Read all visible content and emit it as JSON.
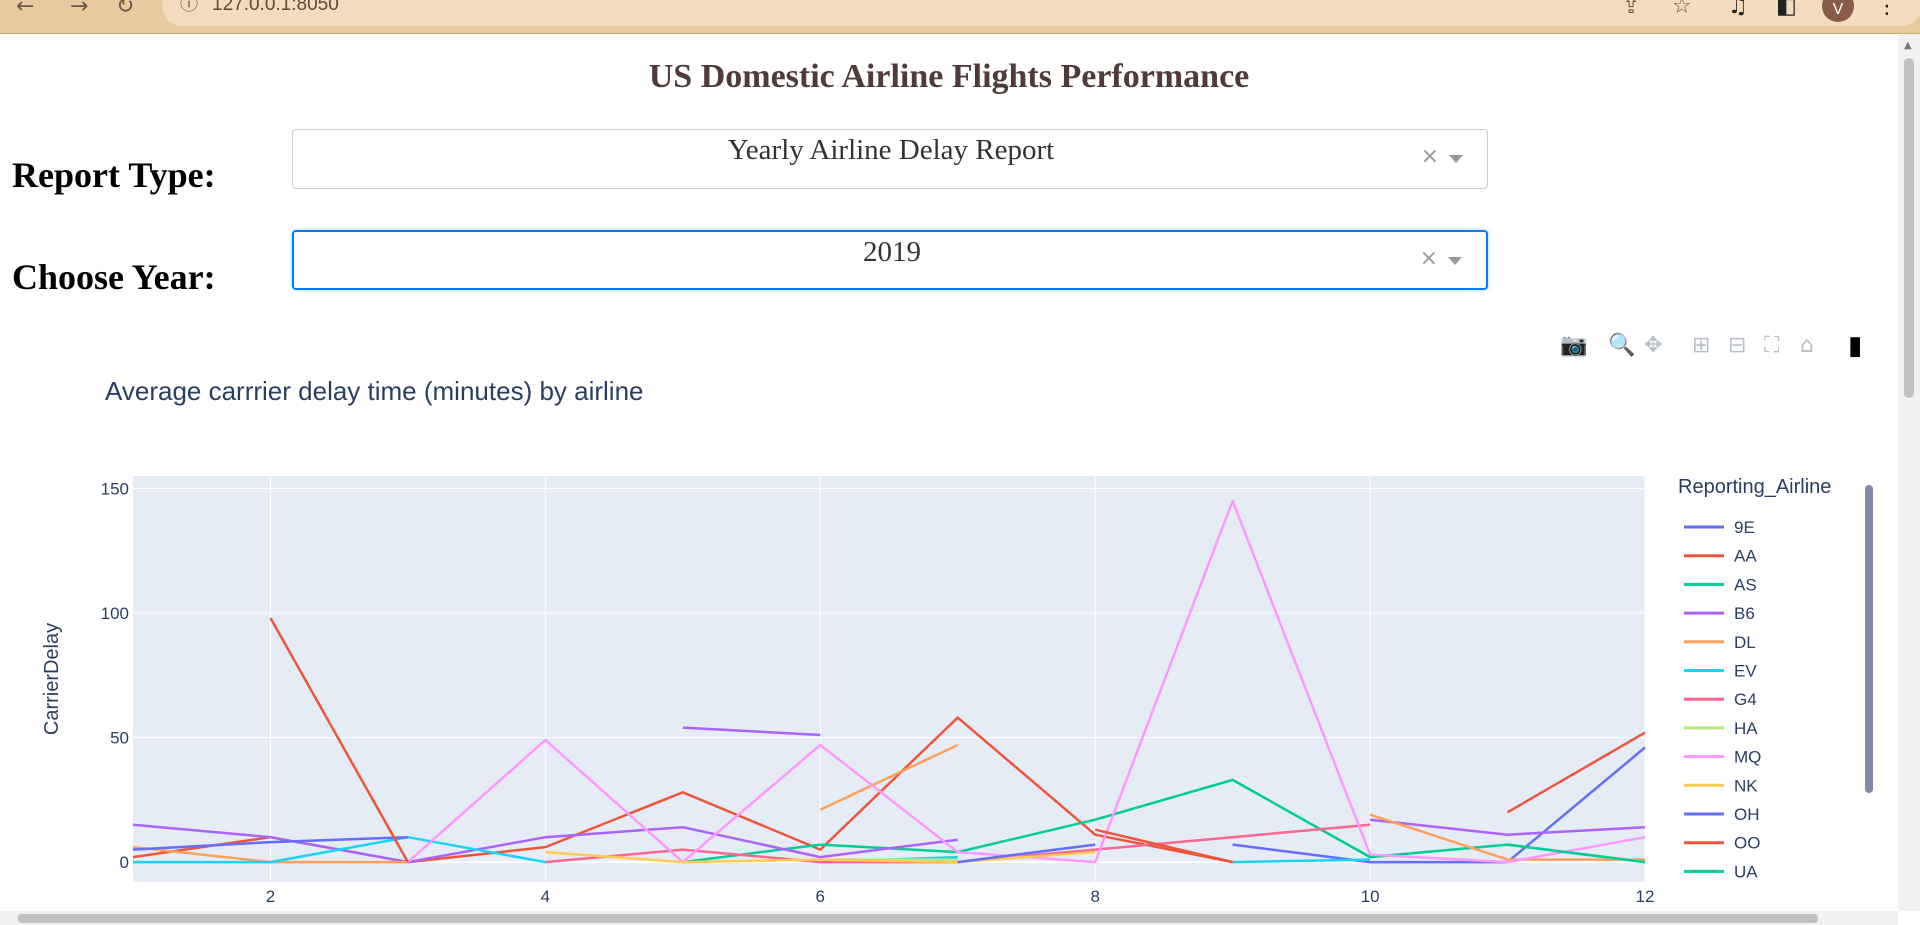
{
  "browser": {
    "url": "127.0.0.1:8050",
    "avatar_letter": "V",
    "nav_back": "←",
    "nav_forward": "→",
    "nav_reload": "↻",
    "info_icon": "ⓘ",
    "share_icon": "⇪",
    "star_icon": "☆",
    "media_icon": "♫",
    "sidepanel_icon": "◧",
    "menu_icon": "⋮"
  },
  "page": {
    "title": "US Domestic Airline Flights Performance",
    "report_label": "Report Type:",
    "report_value": "Yearly Airline Delay Report",
    "year_label": "Choose Year:",
    "year_value": "2019",
    "clear_symbol": "×"
  },
  "modebar": {
    "camera": "📷",
    "zoom": "🔍",
    "pan": "✥",
    "zoom_in": "⊞",
    "zoom_out": "⊟",
    "autoscale": "⛶",
    "reset": "⌂",
    "plotly_logo": "▮"
  },
  "chart_data": {
    "type": "line",
    "title": "Average carrrier delay time (minutes) by airline",
    "xlabel": "",
    "ylabel": "CarrierDelay",
    "xlim": [
      1,
      12
    ],
    "ylim": [
      -8,
      155
    ],
    "x_ticks": [
      2,
      4,
      6,
      8,
      10,
      12
    ],
    "y_ticks": [
      0,
      50,
      100,
      150
    ],
    "grid": true,
    "legend_title": "Reporting_Airline",
    "legend_position": "right",
    "colors": {
      "plot_bg": "#E5ECF6",
      "grid": "#ffffff",
      "text": "#2a3f5f"
    },
    "series": [
      {
        "name": "9E",
        "color": "#636EFA",
        "points": [
          [
            9,
            7
          ],
          [
            10,
            0
          ],
          [
            11,
            0
          ],
          [
            12,
            46
          ]
        ]
      },
      {
        "name": "AA",
        "color": "#EF553B",
        "points": [
          [
            1,
            2
          ],
          [
            2,
            10
          ],
          [
            3,
            0
          ],
          [
            4,
            6
          ],
          [
            5,
            28
          ],
          [
            6,
            5
          ],
          [
            7,
            58
          ],
          [
            8,
            11
          ],
          [
            9,
            0
          ]
        ]
      },
      {
        "name": "AS",
        "color": "#00CC96",
        "points": [
          [
            5,
            0
          ],
          [
            6,
            7
          ],
          [
            7,
            4
          ],
          [
            8,
            17
          ],
          [
            9,
            33
          ],
          [
            10,
            2
          ],
          [
            11,
            7
          ],
          [
            12,
            0
          ]
        ]
      },
      {
        "name": "B6",
        "color": "#AB63FA",
        "points": [
          [
            1,
            15
          ],
          [
            2,
            10
          ],
          [
            3,
            0
          ],
          [
            4,
            10
          ],
          [
            5,
            14
          ],
          [
            6,
            2
          ],
          [
            7,
            9
          ]
        ]
      },
      {
        "name": "B6",
        "color": "#AB63FA",
        "points": [
          [
            5,
            54
          ],
          [
            6,
            51
          ]
        ]
      },
      {
        "name": "B6",
        "color": "#AB63FA",
        "points": [
          [
            10,
            17
          ],
          [
            11,
            11
          ],
          [
            12,
            14
          ]
        ]
      },
      {
        "name": "DL",
        "color": "#FFA15A",
        "points": [
          [
            1,
            6
          ],
          [
            2,
            0
          ],
          [
            3,
            0
          ]
        ]
      },
      {
        "name": "DL",
        "color": "#FFA15A",
        "points": [
          [
            6,
            21
          ],
          [
            7,
            47
          ]
        ]
      },
      {
        "name": "DL",
        "color": "#FFA15A",
        "points": [
          [
            10,
            19
          ],
          [
            11,
            1
          ],
          [
            12,
            1
          ]
        ]
      },
      {
        "name": "EV",
        "color": "#19D3F3",
        "points": [
          [
            1,
            0
          ],
          [
            2,
            0
          ],
          [
            3,
            10
          ],
          [
            4,
            0
          ]
        ]
      },
      {
        "name": "EV",
        "color": "#19D3F3",
        "points": [
          [
            6,
            0
          ],
          [
            7,
            2
          ]
        ]
      },
      {
        "name": "EV",
        "color": "#19D3F3",
        "points": [
          [
            9,
            0
          ],
          [
            10,
            1
          ]
        ]
      },
      {
        "name": "G4",
        "color": "#FF6692",
        "points": [
          [
            4,
            0
          ],
          [
            5,
            5
          ],
          [
            6,
            0
          ],
          [
            7,
            0
          ],
          [
            8,
            5
          ],
          [
            9,
            10
          ],
          [
            10,
            15
          ]
        ]
      },
      {
        "name": "HA",
        "color": "#B6E880",
        "points": [
          [
            6,
            1
          ],
          [
            7,
            1
          ]
        ]
      },
      {
        "name": "MQ",
        "color": "#FF97FF",
        "points": [
          [
            3,
            0
          ],
          [
            4,
            49
          ],
          [
            5,
            0
          ],
          [
            6,
            47
          ],
          [
            7,
            4
          ],
          [
            8,
            0
          ],
          [
            9,
            145
          ],
          [
            10,
            3
          ],
          [
            11,
            0
          ],
          [
            12,
            10
          ]
        ]
      },
      {
        "name": "NK",
        "color": "#FECB52",
        "points": [
          [
            4,
            4
          ],
          [
            5,
            0
          ],
          [
            6,
            1
          ],
          [
            7,
            0
          ],
          [
            8,
            4
          ]
        ]
      },
      {
        "name": "OH",
        "color": "#636EFA",
        "points": [
          [
            1,
            5
          ],
          [
            2,
            8
          ],
          [
            3,
            10
          ]
        ]
      },
      {
        "name": "OH",
        "color": "#636EFA",
        "points": [
          [
            7,
            0
          ],
          [
            8,
            7
          ]
        ]
      },
      {
        "name": "OO",
        "color": "#EF553B",
        "points": [
          [
            2,
            98
          ],
          [
            3,
            0
          ]
        ]
      },
      {
        "name": "OO",
        "color": "#EF553B",
        "points": [
          [
            8,
            13
          ],
          [
            9,
            0
          ]
        ]
      },
      {
        "name": "OO",
        "color": "#EF553B",
        "points": [
          [
            11,
            20
          ],
          [
            12,
            52
          ]
        ]
      },
      {
        "name": "UA",
        "color": "#00CC96",
        "points": [
          [
            11,
            7
          ],
          [
            12,
            0
          ]
        ]
      }
    ]
  }
}
